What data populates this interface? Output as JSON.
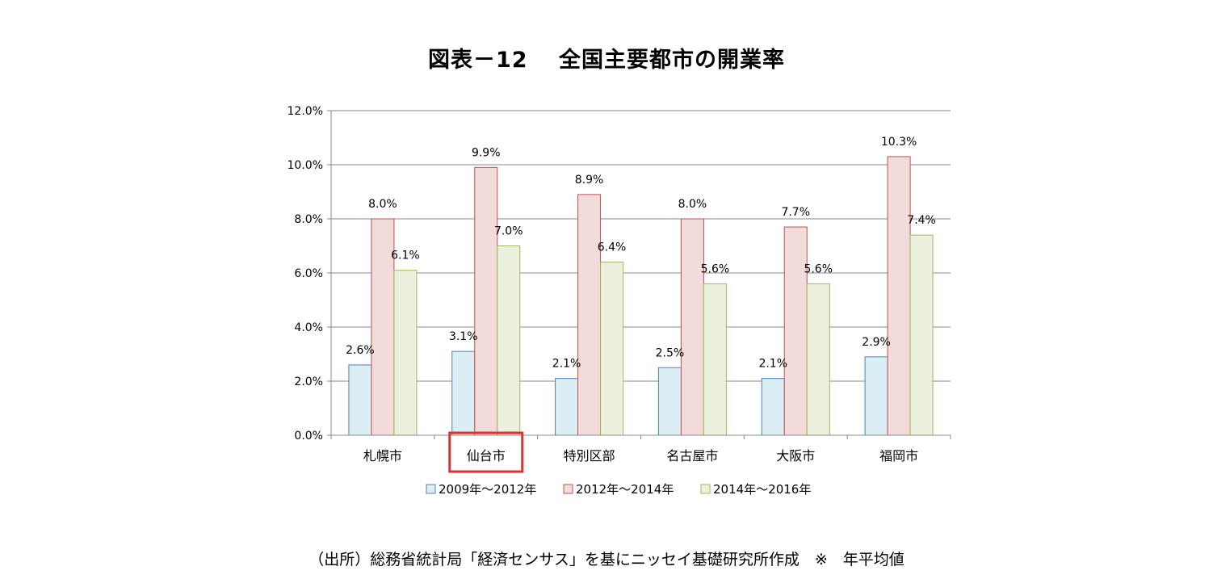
{
  "title": "図表－12　 全国主要都市の開業率",
  "source_note": "（出所）総務省統計局「経済センサス」を基にニッセイ基礎研究所作成　※　年平均値",
  "colors": {
    "series": [
      "#dbeef4",
      "#f2dcdb",
      "#ebf1de"
    ],
    "series_stroke": [
      "#4f81bd",
      "#c0504d",
      "#9bbb59"
    ],
    "highlight_box": "#e03030",
    "gridline": "#888888",
    "axis": "#888888"
  },
  "chart_data": {
    "type": "bar",
    "title": "図表－12　 全国主要都市の開業率",
    "categories": [
      "札幌市",
      "仙台市",
      "特別区部",
      "名古屋市",
      "大阪市",
      "福岡市"
    ],
    "series": [
      {
        "name": "2009年～2012年",
        "values": [
          2.6,
          3.1,
          2.1,
          2.5,
          2.1,
          2.9
        ],
        "labels": [
          "2.6%",
          "3.1%",
          "2.1%",
          "2.5%",
          "2.1%",
          "2.9%"
        ]
      },
      {
        "name": "2012年～2014年",
        "values": [
          8.0,
          9.9,
          8.9,
          8.0,
          7.7,
          10.3
        ],
        "labels": [
          "8.0%",
          "9.9%",
          "8.9%",
          "8.0%",
          "7.7%",
          "10.3%"
        ]
      },
      {
        "name": "2014年～2016年",
        "values": [
          6.1,
          7.0,
          6.4,
          5.6,
          5.6,
          7.4
        ],
        "labels": [
          "6.1%",
          "7.0%",
          "6.4%",
          "5.6%",
          "5.6%",
          "7.4%"
        ]
      }
    ],
    "y_ticks": [
      "0.0%",
      "2.0%",
      "4.0%",
      "6.0%",
      "8.0%",
      "10.0%",
      "12.0%"
    ],
    "ylim": [
      0,
      12
    ],
    "grid": true,
    "legend_position": "bottom",
    "highlighted_category": "仙台市"
  }
}
